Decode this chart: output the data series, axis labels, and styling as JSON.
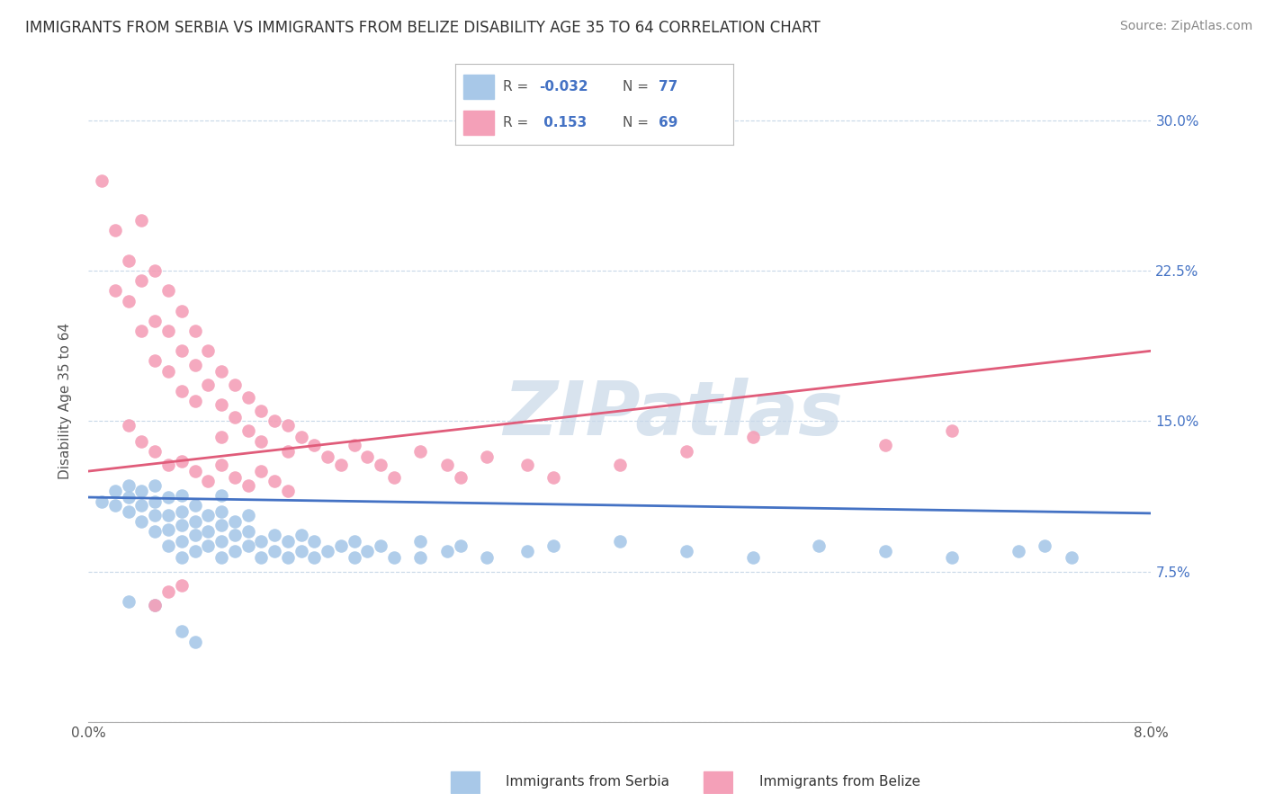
{
  "title": "IMMIGRANTS FROM SERBIA VS IMMIGRANTS FROM BELIZE DISABILITY AGE 35 TO 64 CORRELATION CHART",
  "source": "Source: ZipAtlas.com",
  "ylabel": "Disability Age 35 to 64",
  "xlim": [
    0.0,
    0.08
  ],
  "ylim": [
    0.0,
    0.32
  ],
  "xticks": [
    0.0,
    0.01,
    0.02,
    0.03,
    0.04,
    0.05,
    0.06,
    0.07,
    0.08
  ],
  "xticklabels": [
    "0.0%",
    "",
    "",
    "",
    "",
    "",
    "",
    "",
    "8.0%"
  ],
  "yticks": [
    0.0,
    0.075,
    0.15,
    0.225,
    0.3
  ],
  "yticklabels_right": [
    "",
    "7.5%",
    "15.0%",
    "22.5%",
    "30.0%"
  ],
  "serbia_trend": [
    0.0,
    0.112,
    0.08,
    0.104
  ],
  "belize_trend": [
    0.0,
    0.125,
    0.08,
    0.185
  ],
  "serbia_color": "#a8c8e8",
  "belize_color": "#f4a0b8",
  "serbia_line_color": "#4472c4",
  "belize_line_color": "#e05c7a",
  "watermark": "ZIPatlas",
  "background_color": "#ffffff",
  "grid_color": "#c8d8e8",
  "serbia_x": [
    0.001,
    0.002,
    0.002,
    0.003,
    0.003,
    0.003,
    0.004,
    0.004,
    0.004,
    0.005,
    0.005,
    0.005,
    0.005,
    0.006,
    0.006,
    0.006,
    0.006,
    0.007,
    0.007,
    0.007,
    0.007,
    0.007,
    0.008,
    0.008,
    0.008,
    0.008,
    0.009,
    0.009,
    0.009,
    0.01,
    0.01,
    0.01,
    0.01,
    0.01,
    0.011,
    0.011,
    0.011,
    0.012,
    0.012,
    0.012,
    0.013,
    0.013,
    0.014,
    0.014,
    0.015,
    0.015,
    0.016,
    0.016,
    0.017,
    0.017,
    0.018,
    0.019,
    0.02,
    0.02,
    0.021,
    0.022,
    0.023,
    0.025,
    0.025,
    0.027,
    0.028,
    0.03,
    0.033,
    0.035,
    0.04,
    0.045,
    0.05,
    0.055,
    0.06,
    0.065,
    0.07,
    0.072,
    0.074,
    0.003,
    0.005,
    0.007,
    0.008
  ],
  "serbia_y": [
    0.11,
    0.108,
    0.115,
    0.105,
    0.112,
    0.118,
    0.1,
    0.108,
    0.115,
    0.095,
    0.103,
    0.11,
    0.118,
    0.088,
    0.096,
    0.103,
    0.112,
    0.082,
    0.09,
    0.098,
    0.105,
    0.113,
    0.085,
    0.093,
    0.1,
    0.108,
    0.088,
    0.095,
    0.103,
    0.082,
    0.09,
    0.098,
    0.105,
    0.113,
    0.085,
    0.093,
    0.1,
    0.088,
    0.095,
    0.103,
    0.082,
    0.09,
    0.085,
    0.093,
    0.082,
    0.09,
    0.085,
    0.093,
    0.082,
    0.09,
    0.085,
    0.088,
    0.082,
    0.09,
    0.085,
    0.088,
    0.082,
    0.082,
    0.09,
    0.085,
    0.088,
    0.082,
    0.085,
    0.088,
    0.09,
    0.085,
    0.082,
    0.088,
    0.085,
    0.082,
    0.085,
    0.088,
    0.082,
    0.06,
    0.058,
    0.045,
    0.04
  ],
  "belize_x": [
    0.001,
    0.002,
    0.002,
    0.003,
    0.003,
    0.004,
    0.004,
    0.004,
    0.005,
    0.005,
    0.005,
    0.006,
    0.006,
    0.006,
    0.007,
    0.007,
    0.007,
    0.008,
    0.008,
    0.008,
    0.009,
    0.009,
    0.01,
    0.01,
    0.01,
    0.011,
    0.011,
    0.012,
    0.012,
    0.013,
    0.013,
    0.014,
    0.015,
    0.015,
    0.016,
    0.017,
    0.018,
    0.019,
    0.02,
    0.021,
    0.022,
    0.023,
    0.025,
    0.027,
    0.028,
    0.03,
    0.033,
    0.035,
    0.04,
    0.045,
    0.05,
    0.06,
    0.065,
    0.003,
    0.004,
    0.005,
    0.006,
    0.007,
    0.008,
    0.009,
    0.01,
    0.011,
    0.012,
    0.013,
    0.014,
    0.015,
    0.005,
    0.006,
    0.007
  ],
  "belize_y": [
    0.27,
    0.245,
    0.215,
    0.23,
    0.21,
    0.25,
    0.22,
    0.195,
    0.225,
    0.2,
    0.18,
    0.215,
    0.195,
    0.175,
    0.205,
    0.185,
    0.165,
    0.195,
    0.178,
    0.16,
    0.185,
    0.168,
    0.175,
    0.158,
    0.142,
    0.168,
    0.152,
    0.162,
    0.145,
    0.155,
    0.14,
    0.15,
    0.148,
    0.135,
    0.142,
    0.138,
    0.132,
    0.128,
    0.138,
    0.132,
    0.128,
    0.122,
    0.135,
    0.128,
    0.122,
    0.132,
    0.128,
    0.122,
    0.128,
    0.135,
    0.142,
    0.138,
    0.145,
    0.148,
    0.14,
    0.135,
    0.128,
    0.13,
    0.125,
    0.12,
    0.128,
    0.122,
    0.118,
    0.125,
    0.12,
    0.115,
    0.058,
    0.065,
    0.068
  ]
}
